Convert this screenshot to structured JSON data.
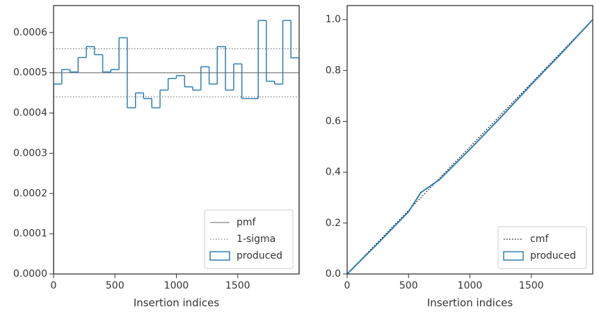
{
  "chart_data": [
    {
      "type": "histogram",
      "xlabel": "Insertion indices",
      "bins": [
        0,
        67,
        133,
        200,
        267,
        333,
        400,
        467,
        533,
        600,
        667,
        733,
        800,
        867,
        933,
        1000,
        1067,
        1133,
        1200,
        1267,
        1333,
        1400,
        1467,
        1533,
        1600,
        1667,
        1733,
        1800,
        1867,
        1933,
        2000
      ],
      "series": [
        {
          "name": "produced",
          "color": "#2e7eb3",
          "values": [
            0.000472,
            0.000508,
            0.000502,
            0.000538,
            0.000565,
            0.000545,
            0.000502,
            0.000508,
            0.000587,
            0.000413,
            0.00045,
            0.000436,
            0.000413,
            0.000457,
            0.000486,
            0.000493,
            0.000465,
            0.000457,
            0.000515,
            0.000472,
            0.000565,
            0.000457,
            0.000522,
            0.000436,
            0.000436,
            0.00063,
            0.000479,
            0.000472,
            0.00063,
            0.000537
          ]
        }
      ],
      "hlines": [
        {
          "name": "pmf",
          "color": "#808080",
          "style": "solid",
          "values": [
            0.0005
          ]
        },
        {
          "name": "1-sigma",
          "color": "#808080",
          "style": "dotted",
          "values": [
            0.00044,
            0.00056
          ]
        }
      ],
      "xlim": [
        0,
        2000
      ],
      "xticks": [
        0,
        500,
        1000,
        1500
      ],
      "ylim": [
        0,
        0.000667
      ],
      "yticks": [
        {
          "value": 0,
          "label": "0.0000"
        },
        {
          "value": 0.0001,
          "label": "0.0001"
        },
        {
          "value": 0.0002,
          "label": "0.0002"
        },
        {
          "value": 0.0003,
          "label": "0.0003"
        },
        {
          "value": 0.0004,
          "label": "0.0004"
        },
        {
          "value": 0.0005,
          "label": "0.0005"
        },
        {
          "value": 0.0006,
          "label": "0.0006"
        }
      ],
      "legend": "lower right"
    },
    {
      "type": "line",
      "xlabel": "Insertion indices",
      "series": [
        {
          "name": "cmf",
          "color": "#000000",
          "style": "dotted",
          "x": [
            0,
            2000
          ],
          "values": [
            0,
            1
          ]
        },
        {
          "name": "produced",
          "color": "#2e7eb3",
          "style": "solid",
          "x": [
            0,
            250,
            500,
            600,
            750,
            1000,
            1250,
            1500,
            1750,
            2000
          ],
          "values": [
            0,
            0.12,
            0.245,
            0.32,
            0.37,
            0.49,
            0.615,
            0.745,
            0.87,
            1.0
          ]
        }
      ],
      "xlim": [
        0,
        2000
      ],
      "xticks": [
        0,
        500,
        1000,
        1500
      ],
      "ylim": [
        0,
        1.055
      ],
      "yticks": [
        {
          "value": 0,
          "label": "0.0"
        },
        0.2,
        0.4,
        0.6,
        0.8,
        {
          "value": 1,
          "label": "1.0"
        }
      ],
      "legend": "lower right"
    }
  ]
}
